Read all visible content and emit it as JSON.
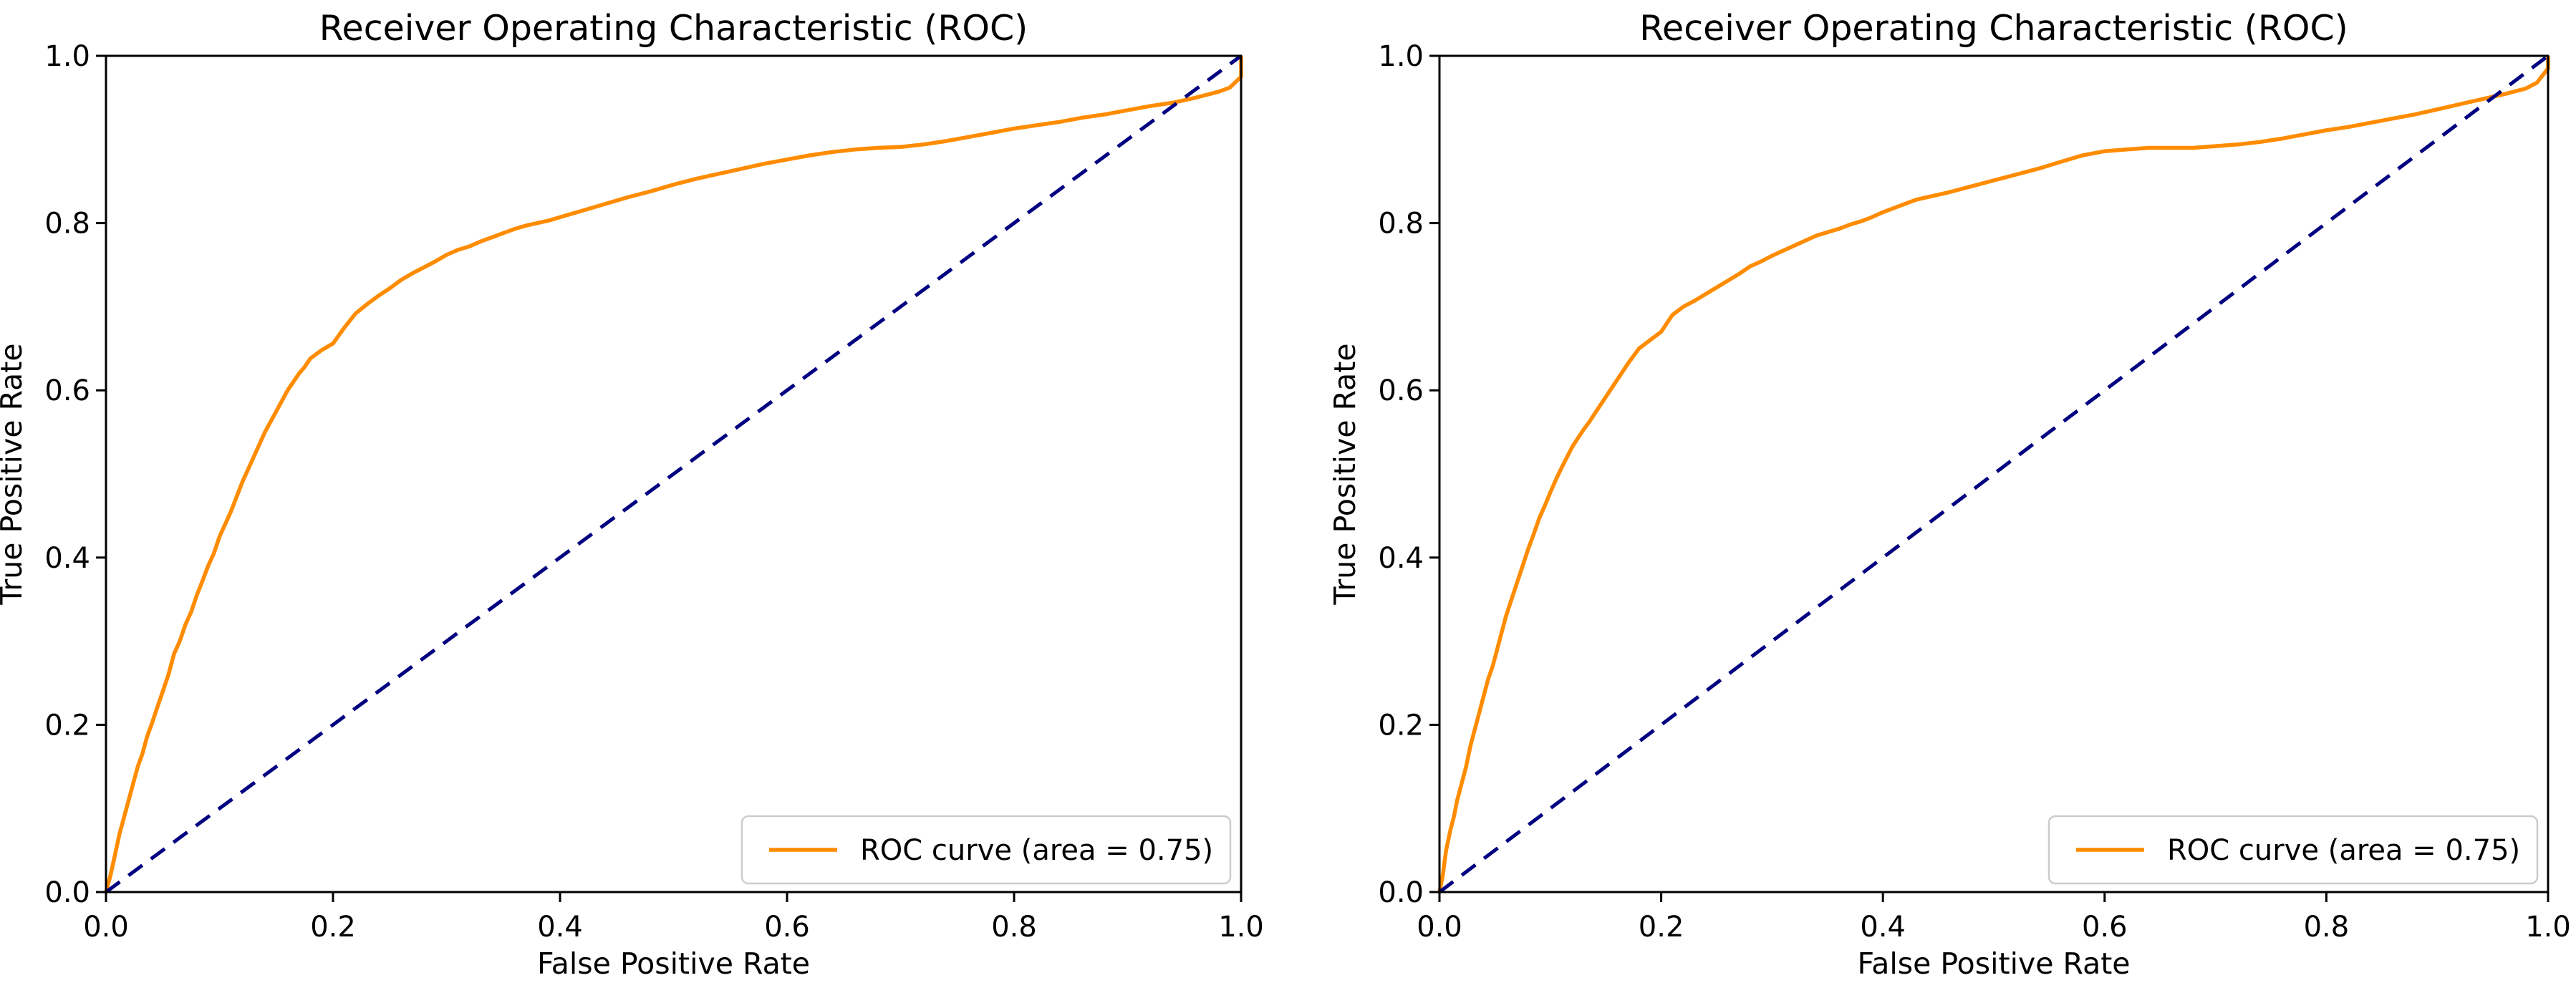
{
  "figure": {
    "background": "#ffffff"
  },
  "colors": {
    "roc_curve": "#ff8c00",
    "diagonal": "#000080",
    "text": "#000000",
    "spine": "#000000",
    "legend_border": "#cccccc",
    "legend_fill": "#ffffff"
  },
  "chart_data": [
    {
      "type": "line",
      "title": "Receiver Operating Characteristic (ROC)",
      "xlabel": "False Positive Rate",
      "ylabel": "True Positive Rate",
      "xlim": [
        0.0,
        1.0
      ],
      "ylim": [
        0.0,
        1.0
      ],
      "xticks": [
        "0.0",
        "0.2",
        "0.4",
        "0.6",
        "0.8",
        "1.0"
      ],
      "yticks": [
        "0.0",
        "0.2",
        "0.4",
        "0.6",
        "0.8",
        "1.0"
      ],
      "grid": false,
      "legend": {
        "label": "ROC curve (area = 0.75)",
        "position": "lower right"
      },
      "auc": 0.75,
      "series": [
        {
          "name": "ROC curve",
          "style": "solid",
          "color_ref": "roc_curve",
          "points": [
            [
              0.0,
              0.0
            ],
            [
              0.004,
              0.02
            ],
            [
              0.008,
              0.045
            ],
            [
              0.012,
              0.07
            ],
            [
              0.016,
              0.09
            ],
            [
              0.02,
              0.11
            ],
            [
              0.024,
              0.13
            ],
            [
              0.028,
              0.15
            ],
            [
              0.032,
              0.165
            ],
            [
              0.036,
              0.185
            ],
            [
              0.04,
              0.2
            ],
            [
              0.045,
              0.22
            ],
            [
              0.05,
              0.24
            ],
            [
              0.055,
              0.26
            ],
            [
              0.06,
              0.285
            ],
            [
              0.065,
              0.3
            ],
            [
              0.07,
              0.32
            ],
            [
              0.075,
              0.335
            ],
            [
              0.08,
              0.355
            ],
            [
              0.085,
              0.372
            ],
            [
              0.09,
              0.39
            ],
            [
              0.095,
              0.405
            ],
            [
              0.1,
              0.425
            ],
            [
              0.11,
              0.455
            ],
            [
              0.12,
              0.49
            ],
            [
              0.13,
              0.52
            ],
            [
              0.14,
              0.55
            ],
            [
              0.15,
              0.575
            ],
            [
              0.16,
              0.6
            ],
            [
              0.17,
              0.62
            ],
            [
              0.175,
              0.628
            ],
            [
              0.18,
              0.638
            ],
            [
              0.19,
              0.648
            ],
            [
              0.2,
              0.656
            ],
            [
              0.21,
              0.675
            ],
            [
              0.22,
              0.692
            ],
            [
              0.23,
              0.703
            ],
            [
              0.24,
              0.713
            ],
            [
              0.25,
              0.722
            ],
            [
              0.26,
              0.732
            ],
            [
              0.27,
              0.74
            ],
            [
              0.28,
              0.747
            ],
            [
              0.29,
              0.754
            ],
            [
              0.3,
              0.762
            ],
            [
              0.31,
              0.768
            ],
            [
              0.32,
              0.772
            ],
            [
              0.33,
              0.778
            ],
            [
              0.34,
              0.783
            ],
            [
              0.35,
              0.788
            ],
            [
              0.36,
              0.793
            ],
            [
              0.37,
              0.797
            ],
            [
              0.38,
              0.8
            ],
            [
              0.39,
              0.803
            ],
            [
              0.4,
              0.807
            ],
            [
              0.42,
              0.815
            ],
            [
              0.44,
              0.823
            ],
            [
              0.46,
              0.831
            ],
            [
              0.48,
              0.838
            ],
            [
              0.5,
              0.846
            ],
            [
              0.52,
              0.853
            ],
            [
              0.54,
              0.859
            ],
            [
              0.56,
              0.865
            ],
            [
              0.58,
              0.871
            ],
            [
              0.6,
              0.876
            ],
            [
              0.62,
              0.881
            ],
            [
              0.64,
              0.885
            ],
            [
              0.66,
              0.888
            ],
            [
              0.68,
              0.89
            ],
            [
              0.7,
              0.891
            ],
            [
              0.72,
              0.894
            ],
            [
              0.74,
              0.898
            ],
            [
              0.76,
              0.903
            ],
            [
              0.78,
              0.908
            ],
            [
              0.8,
              0.913
            ],
            [
              0.82,
              0.917
            ],
            [
              0.84,
              0.921
            ],
            [
              0.86,
              0.926
            ],
            [
              0.88,
              0.93
            ],
            [
              0.9,
              0.935
            ],
            [
              0.92,
              0.94
            ],
            [
              0.94,
              0.944
            ],
            [
              0.96,
              0.95
            ],
            [
              0.98,
              0.957
            ],
            [
              0.99,
              0.962
            ],
            [
              1.0,
              0.975
            ],
            [
              1.0,
              1.0
            ]
          ]
        },
        {
          "name": "chance diagonal",
          "style": "dashed",
          "color_ref": "diagonal",
          "points": [
            [
              0.0,
              0.0
            ],
            [
              1.0,
              1.0
            ]
          ]
        }
      ]
    },
    {
      "type": "line",
      "title": "Receiver Operating Characteristic (ROC)",
      "xlabel": "False Positive Rate",
      "ylabel": "True Positive Rate",
      "xlim": [
        0.0,
        1.0
      ],
      "ylim": [
        0.0,
        1.0
      ],
      "xticks": [
        "0.0",
        "0.2",
        "0.4",
        "0.6",
        "0.8",
        "1.0"
      ],
      "yticks": [
        "0.0",
        "0.2",
        "0.4",
        "0.6",
        "0.8",
        "1.0"
      ],
      "grid": false,
      "legend": {
        "label": "ROC curve (area = 0.75)",
        "position": "lower right"
      },
      "auc": 0.75,
      "series": [
        {
          "name": "ROC curve",
          "style": "solid",
          "color_ref": "roc_curve",
          "points": [
            [
              0.0,
              0.0
            ],
            [
              0.003,
              0.02
            ],
            [
              0.006,
              0.05
            ],
            [
              0.01,
              0.075
            ],
            [
              0.013,
              0.09
            ],
            [
              0.016,
              0.11
            ],
            [
              0.02,
              0.13
            ],
            [
              0.024,
              0.15
            ],
            [
              0.028,
              0.175
            ],
            [
              0.032,
              0.195
            ],
            [
              0.036,
              0.215
            ],
            [
              0.04,
              0.235
            ],
            [
              0.044,
              0.255
            ],
            [
              0.048,
              0.27
            ],
            [
              0.052,
              0.29
            ],
            [
              0.056,
              0.31
            ],
            [
              0.06,
              0.33
            ],
            [
              0.065,
              0.35
            ],
            [
              0.07,
              0.37
            ],
            [
              0.075,
              0.39
            ],
            [
              0.08,
              0.41
            ],
            [
              0.085,
              0.428
            ],
            [
              0.09,
              0.447
            ],
            [
              0.095,
              0.462
            ],
            [
              0.1,
              0.478
            ],
            [
              0.105,
              0.493
            ],
            [
              0.11,
              0.507
            ],
            [
              0.115,
              0.52
            ],
            [
              0.12,
              0.533
            ],
            [
              0.125,
              0.543
            ],
            [
              0.13,
              0.553
            ],
            [
              0.135,
              0.562
            ],
            [
              0.14,
              0.572
            ],
            [
              0.15,
              0.592
            ],
            [
              0.16,
              0.612
            ],
            [
              0.17,
              0.632
            ],
            [
              0.18,
              0.65
            ],
            [
              0.19,
              0.66
            ],
            [
              0.2,
              0.67
            ],
            [
              0.21,
              0.69
            ],
            [
              0.22,
              0.7
            ],
            [
              0.23,
              0.707
            ],
            [
              0.24,
              0.715
            ],
            [
              0.25,
              0.723
            ],
            [
              0.26,
              0.731
            ],
            [
              0.27,
              0.739
            ],
            [
              0.28,
              0.748
            ],
            [
              0.29,
              0.754
            ],
            [
              0.3,
              0.761
            ],
            [
              0.31,
              0.767
            ],
            [
              0.32,
              0.773
            ],
            [
              0.33,
              0.779
            ],
            [
              0.34,
              0.785
            ],
            [
              0.35,
              0.789
            ],
            [
              0.36,
              0.793
            ],
            [
              0.37,
              0.798
            ],
            [
              0.38,
              0.802
            ],
            [
              0.39,
              0.807
            ],
            [
              0.4,
              0.813
            ],
            [
              0.41,
              0.818
            ],
            [
              0.42,
              0.823
            ],
            [
              0.43,
              0.828
            ],
            [
              0.44,
              0.831
            ],
            [
              0.46,
              0.837
            ],
            [
              0.48,
              0.844
            ],
            [
              0.5,
              0.851
            ],
            [
              0.52,
              0.858
            ],
            [
              0.54,
              0.865
            ],
            [
              0.56,
              0.873
            ],
            [
              0.58,
              0.881
            ],
            [
              0.6,
              0.886
            ],
            [
              0.62,
              0.888
            ],
            [
              0.64,
              0.89
            ],
            [
              0.66,
              0.89
            ],
            [
              0.68,
              0.89
            ],
            [
              0.7,
              0.892
            ],
            [
              0.72,
              0.894
            ],
            [
              0.74,
              0.897
            ],
            [
              0.76,
              0.901
            ],
            [
              0.78,
              0.906
            ],
            [
              0.8,
              0.911
            ],
            [
              0.82,
              0.915
            ],
            [
              0.84,
              0.92
            ],
            [
              0.86,
              0.925
            ],
            [
              0.88,
              0.93
            ],
            [
              0.9,
              0.936
            ],
            [
              0.92,
              0.942
            ],
            [
              0.94,
              0.948
            ],
            [
              0.96,
              0.954
            ],
            [
              0.98,
              0.961
            ],
            [
              0.99,
              0.968
            ],
            [
              1.0,
              0.985
            ],
            [
              1.0,
              1.0
            ]
          ]
        },
        {
          "name": "chance diagonal",
          "style": "dashed",
          "color_ref": "diagonal",
          "points": [
            [
              0.0,
              0.0
            ],
            [
              1.0,
              1.0
            ]
          ]
        }
      ]
    }
  ]
}
